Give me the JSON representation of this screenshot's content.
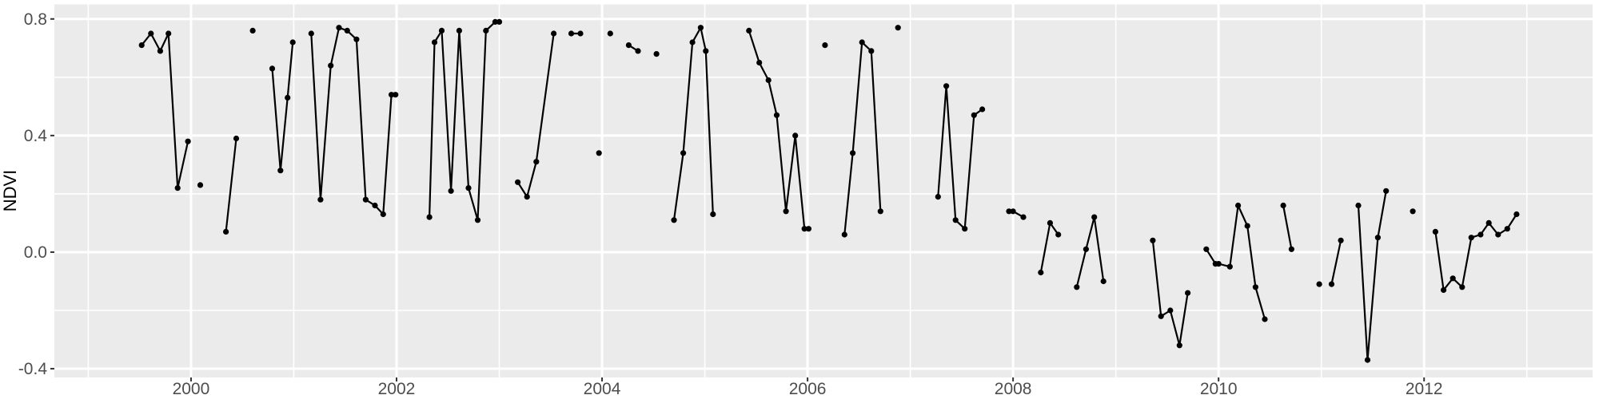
{
  "chart_data": {
    "type": "line",
    "title": "",
    "xlabel": "",
    "ylabel": "NDVI",
    "legend": false,
    "grid": true,
    "xlim": [
      1998.67,
      2013.64
    ],
    "ylim": [
      -0.43,
      0.85
    ],
    "x_tick_values": [
      2000,
      2002,
      2004,
      2006,
      2008,
      2010,
      2012
    ],
    "x_tick_labels": [
      "2000",
      "2002",
      "2004",
      "2006",
      "2008",
      "2010",
      "2012"
    ],
    "x_minor_values": [
      1999,
      2001,
      2003,
      2005,
      2007,
      2009,
      2011,
      2013
    ],
    "y_tick_values": [
      0.8,
      0.4,
      0.0,
      -0.4
    ],
    "y_tick_labels": [
      "0.8",
      "0.4",
      "0.0",
      "-0.4"
    ],
    "y_minor_values": [
      0.6,
      0.2,
      -0.2
    ],
    "series_name": "NDVI",
    "segments": [
      [
        [
          1999.52,
          0.71
        ],
        [
          1999.61,
          0.75
        ],
        [
          1999.7,
          0.69
        ],
        [
          1999.78,
          0.75
        ],
        [
          1999.87,
          0.22
        ],
        [
          1999.97,
          0.38
        ]
      ],
      [
        [
          2000.09,
          0.23
        ]
      ],
      [
        [
          2000.34,
          0.07
        ],
        [
          2000.44,
          0.39
        ]
      ],
      [
        [
          2000.6,
          0.76
        ]
      ],
      [
        [
          2000.79,
          0.63
        ],
        [
          2000.87,
          0.28
        ],
        [
          2000.94,
          0.53
        ],
        [
          2000.99,
          0.72
        ]
      ],
      [
        [
          2001.17,
          0.75
        ],
        [
          2001.26,
          0.18
        ],
        [
          2001.36,
          0.64
        ],
        [
          2001.44,
          0.77
        ],
        [
          2001.52,
          0.76
        ],
        [
          2001.61,
          0.73
        ],
        [
          2001.7,
          0.18
        ],
        [
          2001.79,
          0.16
        ],
        [
          2001.87,
          0.13
        ],
        [
          2001.95,
          0.54
        ],
        [
          2001.99,
          0.54
        ]
      ],
      [
        [
          2002.32,
          0.12
        ],
        [
          2002.37,
          0.72
        ],
        [
          2002.44,
          0.76
        ],
        [
          2002.53,
          0.21
        ],
        [
          2002.61,
          0.76
        ],
        [
          2002.7,
          0.22
        ],
        [
          2002.79,
          0.11
        ],
        [
          2002.87,
          0.76
        ],
        [
          2002.96,
          0.79
        ],
        [
          2003.0,
          0.79
        ]
      ],
      [
        [
          2003.18,
          0.24
        ],
        [
          2003.27,
          0.19
        ],
        [
          2003.36,
          0.31
        ],
        [
          2003.53,
          0.75
        ]
      ],
      [
        [
          2003.7,
          0.75
        ],
        [
          2003.79,
          0.75
        ]
      ],
      [
        [
          2003.97,
          0.34
        ]
      ],
      [
        [
          2004.08,
          0.75
        ]
      ],
      [
        [
          2004.26,
          0.71
        ],
        [
          2004.35,
          0.69
        ]
      ],
      [
        [
          2004.53,
          0.68
        ]
      ],
      [
        [
          2004.7,
          0.11
        ],
        [
          2004.79,
          0.34
        ],
        [
          2004.88,
          0.72
        ],
        [
          2004.96,
          0.77
        ],
        [
          2005.01,
          0.69
        ],
        [
          2005.08,
          0.13
        ]
      ],
      [
        [
          2005.43,
          0.76
        ],
        [
          2005.53,
          0.65
        ],
        [
          2005.62,
          0.59
        ],
        [
          2005.7,
          0.47
        ],
        [
          2005.79,
          0.14
        ],
        [
          2005.88,
          0.4
        ],
        [
          2005.97,
          0.08
        ],
        [
          2006.01,
          0.08
        ]
      ],
      [
        [
          2006.17,
          0.71
        ]
      ],
      [
        [
          2006.36,
          0.06
        ],
        [
          2006.44,
          0.34
        ],
        [
          2006.53,
          0.72
        ],
        [
          2006.62,
          0.69
        ],
        [
          2006.71,
          0.14
        ]
      ],
      [
        [
          2006.88,
          0.77
        ]
      ],
      [
        [
          2007.27,
          0.19
        ],
        [
          2007.35,
          0.57
        ],
        [
          2007.44,
          0.11
        ],
        [
          2007.53,
          0.08
        ],
        [
          2007.62,
          0.47
        ],
        [
          2007.7,
          0.49
        ]
      ],
      [
        [
          2007.96,
          0.14
        ],
        [
          2008.0,
          0.14
        ],
        [
          2008.1,
          0.12
        ]
      ],
      [
        [
          2008.27,
          -0.07
        ],
        [
          2008.36,
          0.1
        ],
        [
          2008.44,
          0.06
        ]
      ],
      [
        [
          2008.62,
          -0.12
        ],
        [
          2008.71,
          0.01
        ],
        [
          2008.79,
          0.12
        ],
        [
          2008.88,
          -0.1
        ]
      ],
      [
        [
          2009.36,
          0.04
        ],
        [
          2009.44,
          -0.22
        ],
        [
          2009.53,
          -0.2
        ],
        [
          2009.62,
          -0.32
        ],
        [
          2009.7,
          -0.14
        ]
      ],
      [
        [
          2009.88,
          0.01
        ],
        [
          2009.97,
          -0.04
        ],
        [
          2010.0,
          -0.04
        ],
        [
          2010.11,
          -0.05
        ],
        [
          2010.19,
          0.16
        ],
        [
          2010.28,
          0.09
        ],
        [
          2010.36,
          -0.12
        ],
        [
          2010.45,
          -0.23
        ]
      ],
      [
        [
          2010.63,
          0.16
        ],
        [
          2010.71,
          0.01
        ]
      ],
      [
        [
          2010.98,
          -0.11
        ]
      ],
      [
        [
          2011.1,
          -0.11
        ],
        [
          2011.19,
          0.04
        ]
      ],
      [
        [
          2011.36,
          0.16
        ],
        [
          2011.45,
          -0.37
        ],
        [
          2011.55,
          0.05
        ],
        [
          2011.63,
          0.21
        ]
      ],
      [
        [
          2011.89,
          0.14
        ]
      ],
      [
        [
          2012.11,
          0.07
        ],
        [
          2012.19,
          -0.13
        ],
        [
          2012.28,
          -0.09
        ],
        [
          2012.37,
          -0.12
        ],
        [
          2012.46,
          0.05
        ],
        [
          2012.55,
          0.06
        ],
        [
          2012.63,
          0.1
        ],
        [
          2012.72,
          0.06
        ],
        [
          2012.81,
          0.08
        ],
        [
          2012.9,
          0.13
        ]
      ]
    ],
    "style": {
      "page_bg": "#FFFFFF",
      "panel_bg": "#EBEBEB",
      "grid_color": "#FFFFFF",
      "line_color": "#000000",
      "point_color": "#000000",
      "axis_text_color": "#4D4D4D",
      "tick_mark_color": "#333333",
      "axis_title_color": "#000000"
    }
  }
}
